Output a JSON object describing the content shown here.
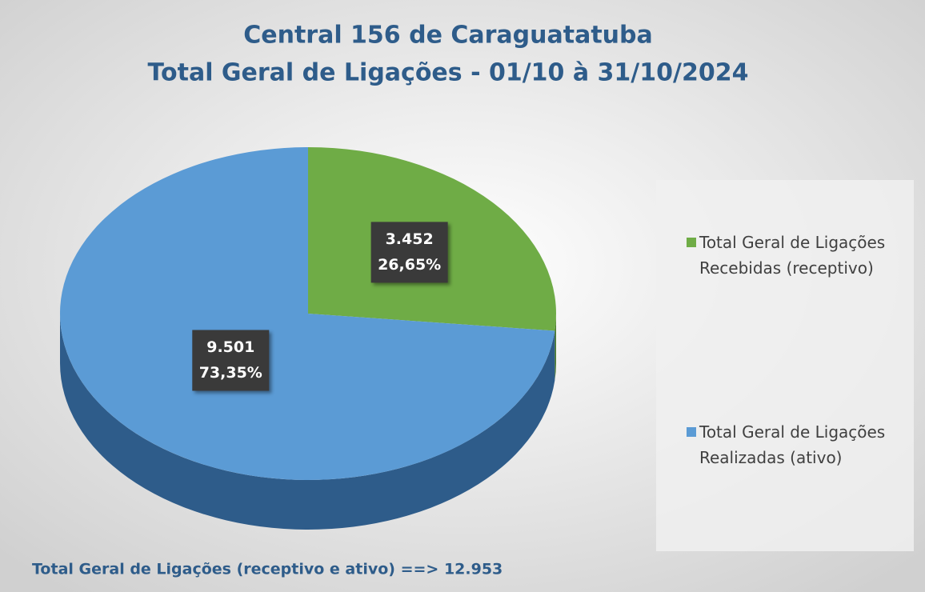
{
  "chart_data": {
    "type": "pie",
    "title": [
      "Central 156 de Caraguatatuba",
      "Total Geral de Ligações - 01/10 à 31/10/2024"
    ],
    "categories": [
      "Total Geral de Ligações Recebidas (receptivo)",
      "Total Geral de Ligações Realizadas (ativo)"
    ],
    "values": [
      3452,
      9501
    ],
    "value_labels": [
      "3.452",
      "9.501"
    ],
    "percentages": [
      26.65,
      73.35
    ],
    "percentage_labels": [
      "26,65%",
      "73,35%"
    ],
    "colors": [
      "#6fac46",
      "#5b9bd5"
    ],
    "side_colors": [
      "#4a7a2c",
      "#2e5c8a"
    ],
    "annotation": "Total Geral de Ligações (receptivo e ativo) ==> 12.953",
    "legend": "right"
  }
}
